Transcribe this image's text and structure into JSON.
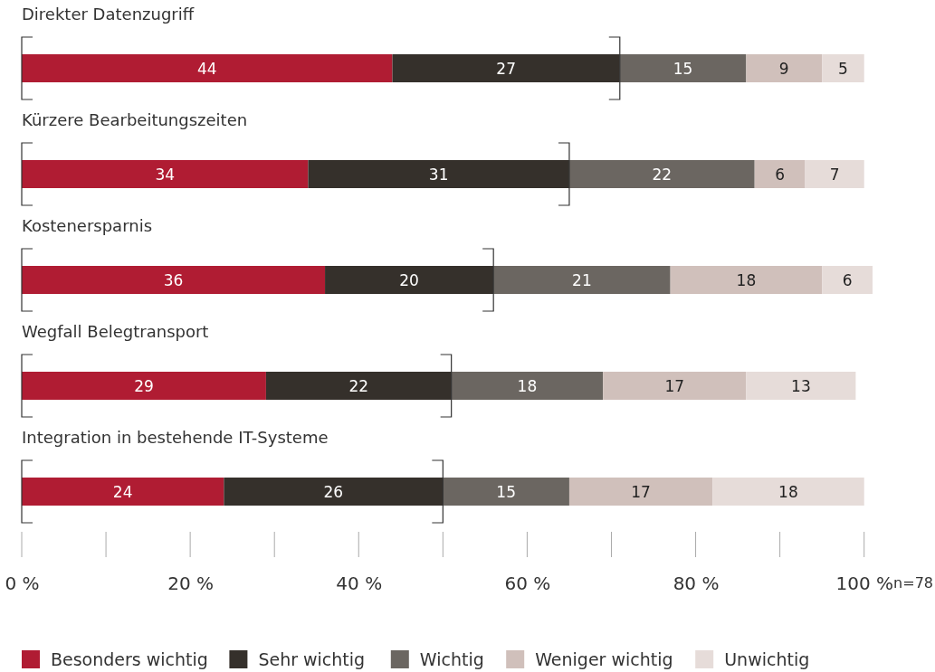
{
  "chart_data": {
    "type": "bar",
    "orientation": "horizontal",
    "stacked": true,
    "data_labels": true,
    "grid": false,
    "legend": "bottom",
    "categories": [
      "Direkter Datenzugriff",
      "Kürzere Bearbeitungszeiten",
      "Kostenersparnis",
      "Wegfall Belegtransport",
      "Integration in bestehende IT-Systeme"
    ],
    "series": [
      {
        "name": "Besonders wichtig",
        "color": "#b01c33",
        "values": [
          44,
          34,
          36,
          29,
          24
        ]
      },
      {
        "name": "Sehr wichtig",
        "color": "#35302b",
        "values": [
          27,
          31,
          20,
          22,
          26
        ]
      },
      {
        "name": "Wichtig",
        "color": "#6b6661",
        "values": [
          15,
          22,
          21,
          18,
          15
        ]
      },
      {
        "name": "Weniger wichtig",
        "color": "#d0c0bb",
        "values": [
          9,
          6,
          18,
          17,
          17
        ]
      },
      {
        "name": "Unwichtig",
        "color": "#e6dcd9",
        "values": [
          5,
          7,
          6,
          13,
          18
        ]
      }
    ],
    "xlim": [
      0,
      101
    ],
    "xticks": [
      {
        "value": 0,
        "label": "0 %"
      },
      {
        "value": 20,
        "label": "20 %"
      },
      {
        "value": 40,
        "label": "40 %"
      },
      {
        "value": 60,
        "label": "60 %"
      },
      {
        "value": 80,
        "label": "80 %"
      },
      {
        "value": 100,
        "label": "100 %"
      }
    ],
    "annotations": [
      "n=78"
    ]
  }
}
